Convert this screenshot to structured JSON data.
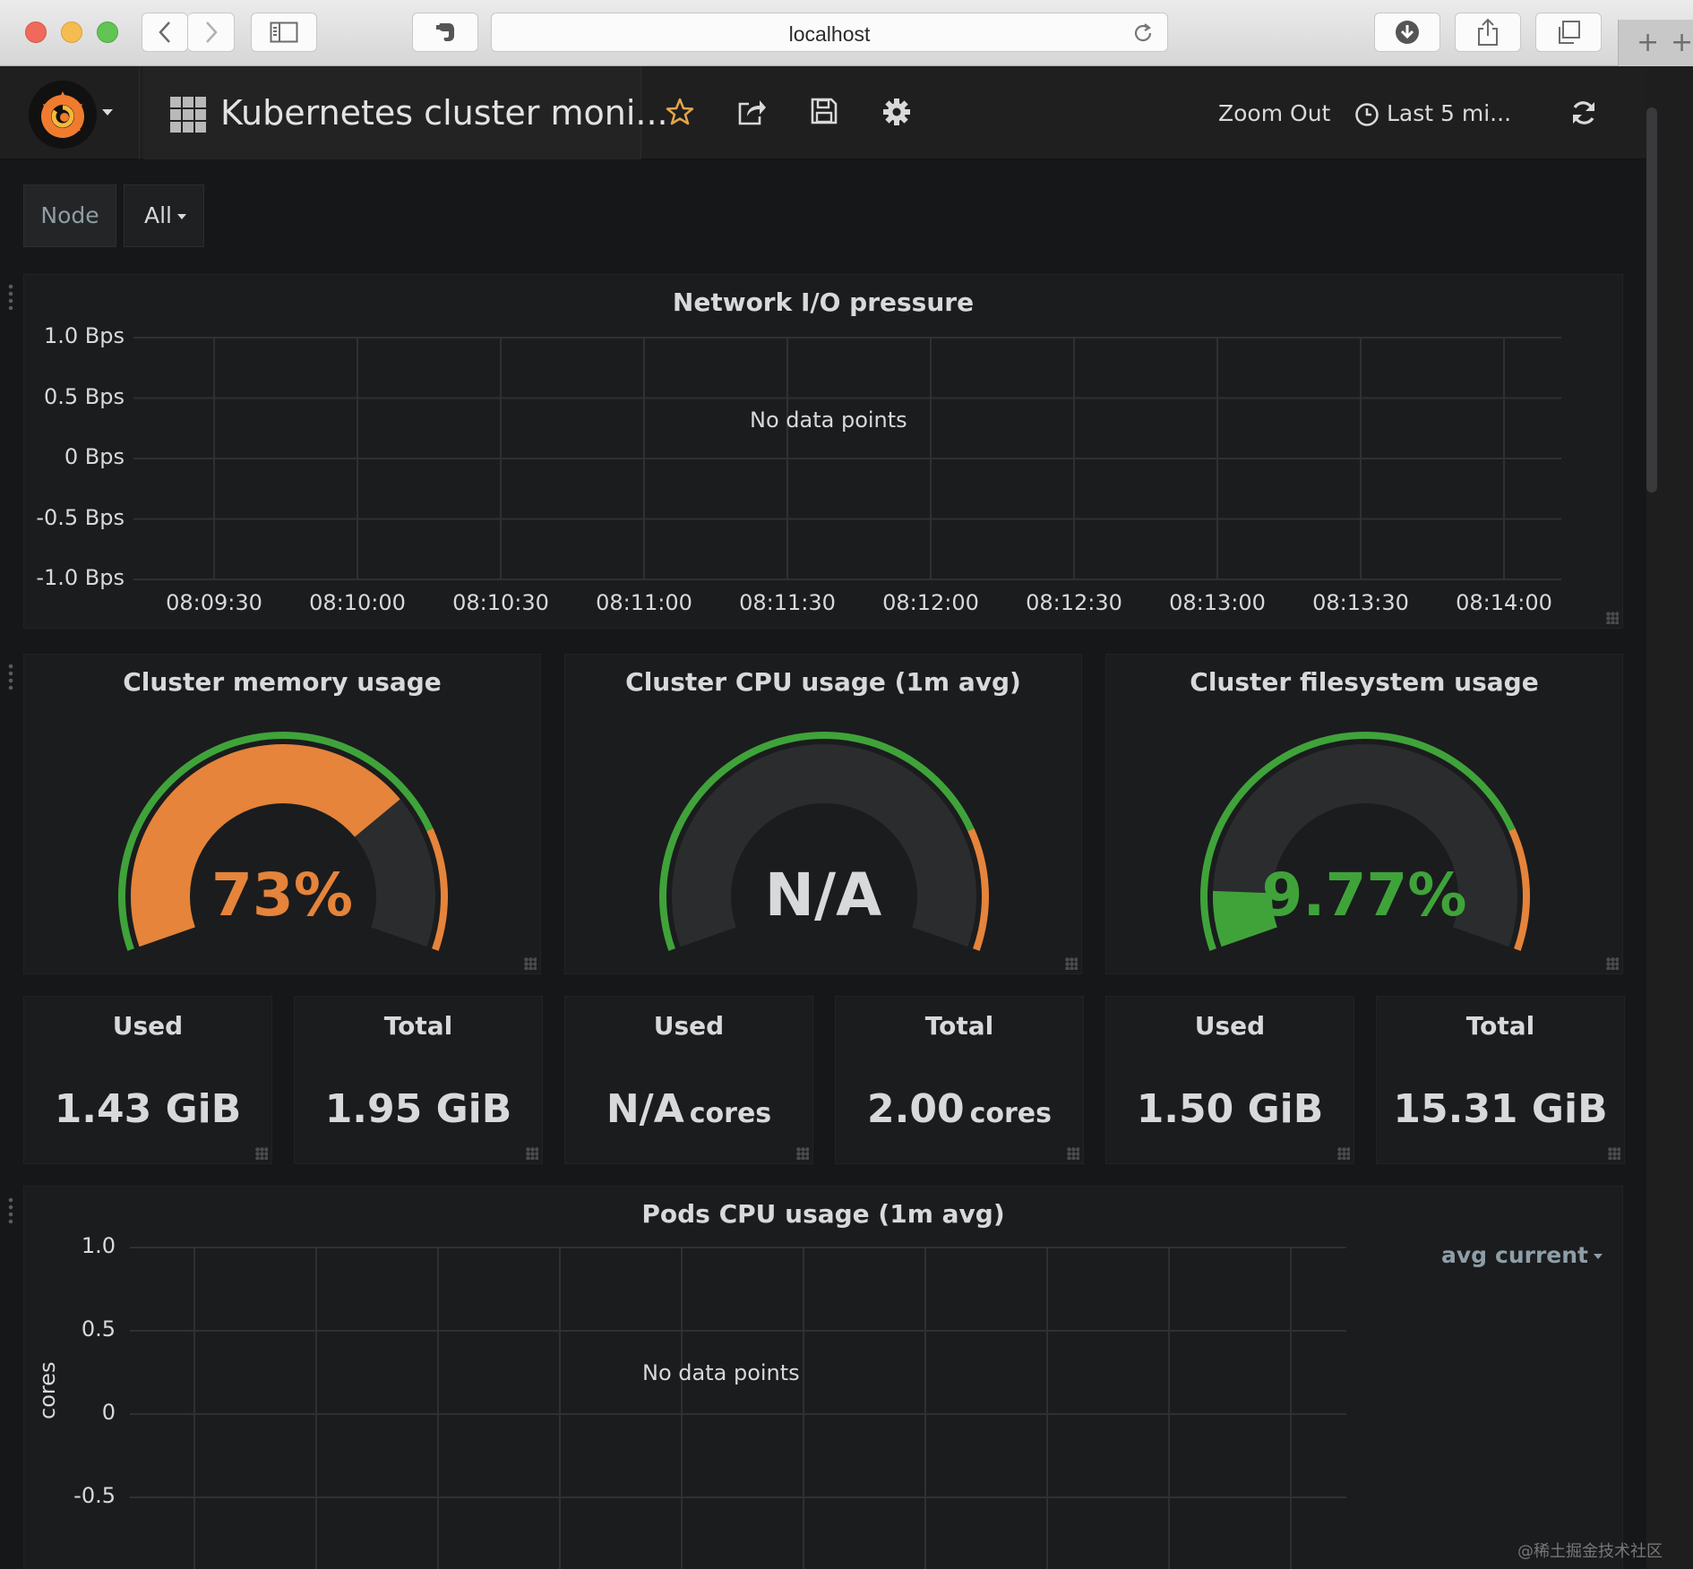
{
  "browser": {
    "url": "localhost"
  },
  "navbar": {
    "dashboard_title": "Kubernetes cluster moni...",
    "zoom_out": "Zoom Out",
    "time_range": "Last 5 mi..."
  },
  "variables": {
    "node_label": "Node",
    "node_value": "All"
  },
  "network_panel": {
    "title": "Network I/O pressure",
    "no_data": "No data points",
    "y_ticks": [
      "1.0 Bps",
      "0.5 Bps",
      "0 Bps",
      "-0.5 Bps",
      "-1.0 Bps"
    ],
    "x_ticks": [
      "08:09:30",
      "08:10:00",
      "08:10:30",
      "08:11:00",
      "08:11:30",
      "08:12:00",
      "08:12:30",
      "08:13:00",
      "08:13:30",
      "08:14:00"
    ]
  },
  "gauges": [
    {
      "title": "Cluster memory usage",
      "value_text": "73%",
      "percent": 73,
      "color": "#e5843a"
    },
    {
      "title": "Cluster CPU usage (1m avg)",
      "value_text": "N/A",
      "percent": 0,
      "color": "#d8d9da"
    },
    {
      "title": "Cluster filesystem usage",
      "value_text": "9.77%",
      "percent": 9.77,
      "color": "#3fa33a"
    }
  ],
  "gauge_thresholds": {
    "green": "#3fa33a",
    "orange": "#e5843a"
  },
  "stats": [
    {
      "title": "Used",
      "value": "1.43 GiB",
      "unit": ""
    },
    {
      "title": "Total",
      "value": "1.95 GiB",
      "unit": ""
    },
    {
      "title": "Used",
      "value": "N/A",
      "unit": "cores"
    },
    {
      "title": "Total",
      "value": "2.00",
      "unit": "cores"
    },
    {
      "title": "Used",
      "value": "1.50 GiB",
      "unit": ""
    },
    {
      "title": "Total",
      "value": "15.31 GiB",
      "unit": ""
    }
  ],
  "pods_panel": {
    "title": "Pods CPU usage (1m avg)",
    "no_data": "No data points",
    "y_axis_label": "cores",
    "y_ticks": [
      "1.0",
      "0.5",
      "0",
      "-0.5"
    ],
    "legend_avg": "avg",
    "legend_current": "current"
  },
  "watermark": "@稀土掘金技术社区"
}
